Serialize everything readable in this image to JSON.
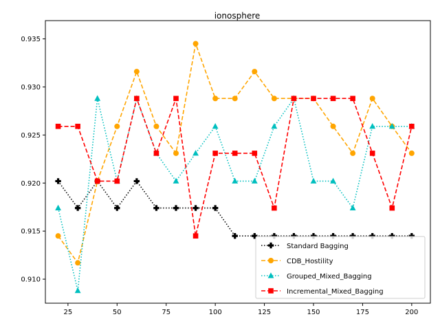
{
  "chart_data": {
    "type": "line",
    "title": "ionosphere",
    "xlabel": "",
    "ylabel": "",
    "xlim": [
      13.5,
      209.5
    ],
    "ylim": [
      0.9075,
      0.9369
    ],
    "x_ticks": [
      25,
      50,
      75,
      100,
      125,
      150,
      175,
      200
    ],
    "y_ticks": [
      0.91,
      0.915,
      0.92,
      0.925,
      0.93,
      0.935
    ],
    "x_tick_labels": [
      "25",
      "50",
      "75",
      "100",
      "125",
      "150",
      "175",
      "200"
    ],
    "y_tick_labels": [
      "0.910",
      "0.915",
      "0.920",
      "0.925",
      "0.930",
      "0.935"
    ],
    "grid": false,
    "legend_position": "lower-right",
    "x": [
      20,
      30,
      40,
      50,
      60,
      70,
      80,
      90,
      100,
      110,
      120,
      130,
      140,
      150,
      160,
      170,
      180,
      190,
      200
    ],
    "series": [
      {
        "name": "Standard Bagging",
        "color": "#000000",
        "linestyle": "dotted",
        "marker": "plus",
        "values": [
          0.9202,
          0.9174,
          0.9202,
          0.9174,
          0.9202,
          0.9174,
          0.9174,
          0.9174,
          0.9174,
          0.9145,
          0.9145,
          0.9145,
          0.9145,
          0.9145,
          0.9145,
          0.9145,
          0.9145,
          0.9145,
          0.9145
        ]
      },
      {
        "name": "CDB_Hostility",
        "color": "#ffa500",
        "linestyle": "dashed",
        "marker": "circle",
        "values": [
          0.9145,
          0.9117,
          0.9202,
          0.9259,
          0.9316,
          0.9259,
          0.9231,
          0.9345,
          0.9288,
          0.9288,
          0.9316,
          0.9288,
          0.9288,
          0.9288,
          0.9259,
          0.9231,
          0.9288,
          0.9259,
          0.9231
        ]
      },
      {
        "name": "Grouped_Mixed_Bagging",
        "color": "#00bfbf",
        "linestyle": "dotted",
        "marker": "triangle",
        "values": [
          0.9174,
          0.9088,
          0.9288,
          0.9202,
          0.9288,
          0.9231,
          0.9202,
          0.9231,
          0.9259,
          0.9202,
          0.9202,
          0.9259,
          0.9288,
          0.9202,
          0.9202,
          0.9174,
          0.9259,
          0.9259,
          0.9259
        ]
      },
      {
        "name": "Incremental_Mixed_Bagging",
        "color": "#ff0000",
        "linestyle": "dashed",
        "marker": "square",
        "values": [
          0.9259,
          0.9259,
          0.9202,
          0.9202,
          0.9288,
          0.9231,
          0.9288,
          0.9145,
          0.9231,
          0.9231,
          0.9231,
          0.9174,
          0.9288,
          0.9288,
          0.9288,
          0.9288,
          0.9231,
          0.9174,
          0.9259
        ]
      }
    ]
  }
}
